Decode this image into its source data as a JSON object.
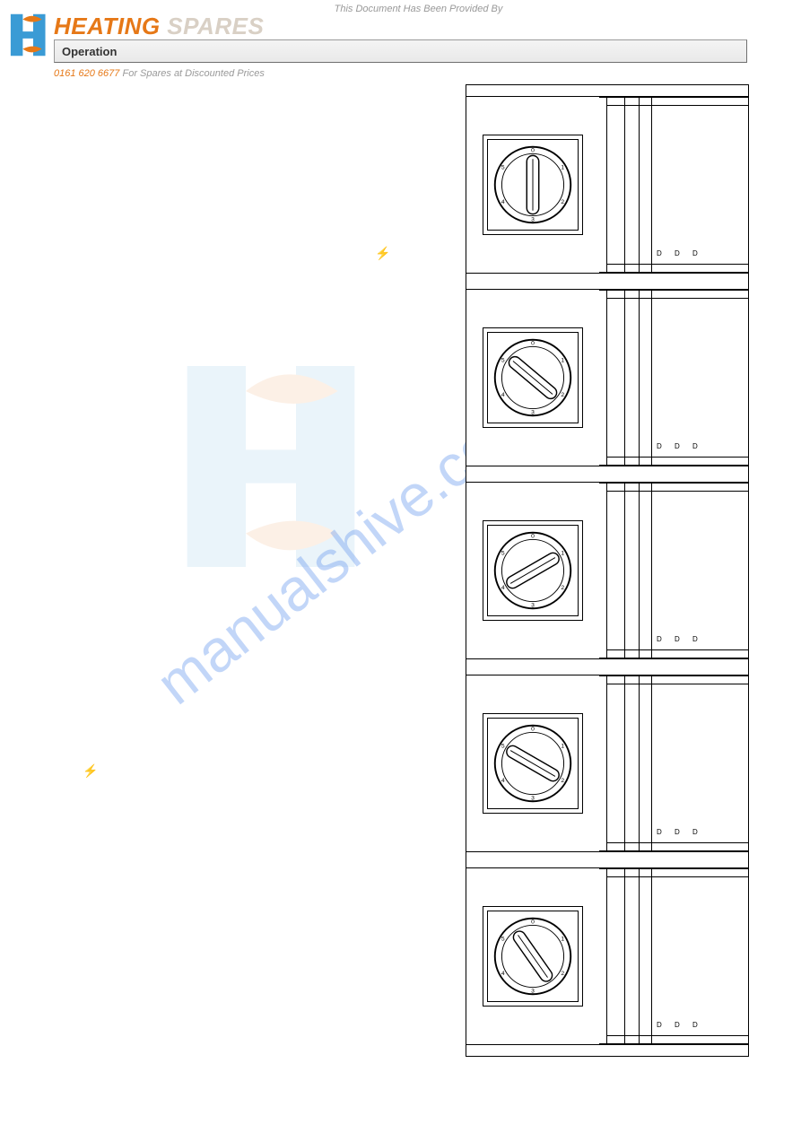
{
  "header": {
    "provided_by": "This Document Has Been Provided By",
    "brand_heating": "HEATING",
    "brand_spares": " SPARES",
    "section_title": "Operation",
    "phone": "0161 620 6677",
    "phone_tag": " For Spares at Discounted Prices"
  },
  "watermark_text": "manualshive.com",
  "dials": [
    {
      "pointer_angle": -90,
      "ticks": [
        "0",
        "1",
        "2",
        "3",
        "4",
        "5"
      ]
    },
    {
      "pointer_angle": -140,
      "ticks": [
        "0",
        "1",
        "2",
        "3",
        "4",
        "5"
      ]
    },
    {
      "pointer_angle": -30,
      "ticks": [
        "0",
        "1",
        "2",
        "3",
        "4",
        "5"
      ]
    },
    {
      "pointer_angle": 30,
      "ticks": [
        "0",
        "1",
        "2",
        "3",
        "4",
        "5"
      ]
    },
    {
      "pointer_angle": 55,
      "ticks": [
        "0",
        "1",
        "2",
        "3",
        "4",
        "5"
      ]
    }
  ],
  "marks_label": "D  D  D"
}
